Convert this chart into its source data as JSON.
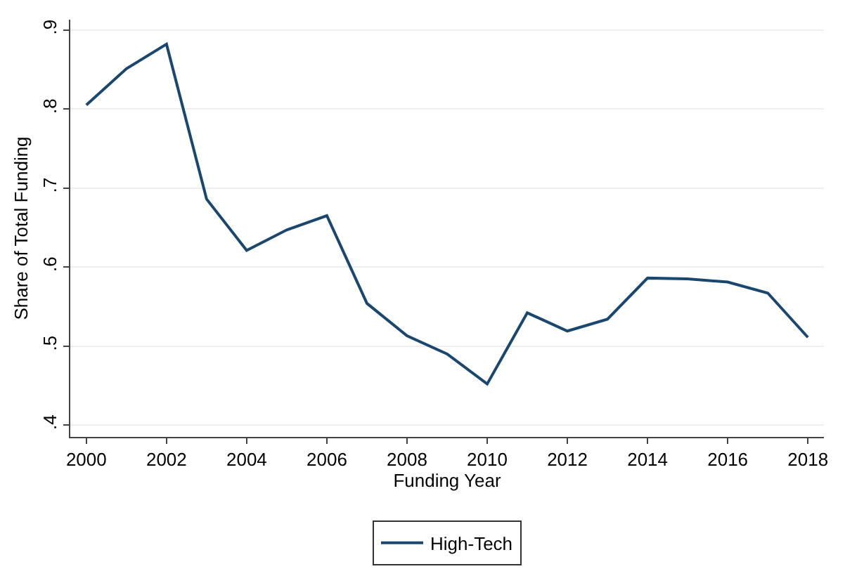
{
  "chart_data": {
    "type": "line",
    "xlabel": "Funding Year",
    "ylabel": "Share of Total Funding",
    "x": [
      2000,
      2001,
      2002,
      2003,
      2004,
      2005,
      2006,
      2007,
      2008,
      2009,
      2010,
      2011,
      2012,
      2013,
      2014,
      2015,
      2016,
      2017,
      2018
    ],
    "series": [
      {
        "name": "High-Tech",
        "color": "#1a476f",
        "values": [
          0.805,
          0.851,
          0.882,
          0.686,
          0.621,
          0.647,
          0.665,
          0.554,
          0.513,
          0.49,
          0.452,
          0.542,
          0.519,
          0.534,
          0.586,
          0.585,
          0.581,
          0.567,
          0.511
        ]
      }
    ],
    "xlim": [
      1999.6,
      2018.4
    ],
    "xticks": [
      2000,
      2002,
      2004,
      2006,
      2008,
      2010,
      2012,
      2014,
      2016,
      2018
    ],
    "ylim": [
      0.385,
      0.913
    ],
    "yticks": [
      {
        "value": 0.4,
        "label": ".4"
      },
      {
        "value": 0.5,
        "label": ".5"
      },
      {
        "value": 0.6,
        "label": ".6"
      },
      {
        "value": 0.7,
        "label": ".7"
      },
      {
        "value": 0.8,
        "label": ".8"
      },
      {
        "value": 0.9,
        "label": ".9"
      }
    ],
    "grid": "y",
    "legend": "bottom",
    "marker": "none",
    "line_style": "solid"
  }
}
